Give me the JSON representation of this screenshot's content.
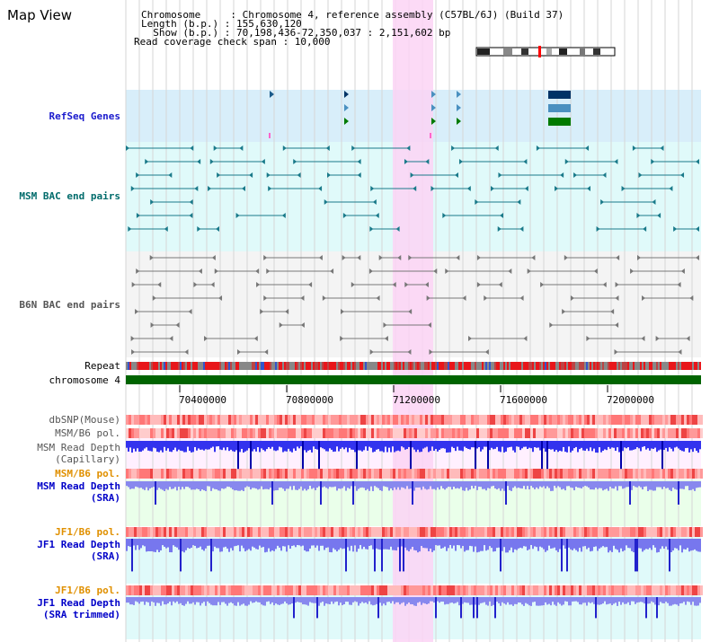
{
  "page": {
    "title": "Map View"
  },
  "header": {
    "chromosome_line": "Chromosome     : Chromosome 4, reference assembly (C57BL/6J) (Build 37)",
    "length_line": "Length (b.p.) : 155,630,120",
    "show_line": "  Show (b.p.) : 70,198,436-72,350,037 : 2,151,602 bp",
    "coverage_line": "Read coverage check span : 10,000"
  },
  "tracks": {
    "refseq_genes": "RefSeq Genes",
    "msm_bac": "MSM BAC end pairs",
    "b6n_bac": "B6N BAC end pairs",
    "repeat": "Repeat",
    "chromosome": "chromosome 4",
    "dbsnp": "dbSNP(Mouse)",
    "msm_b6_pol": "MSM/B6 pol.",
    "msm_read_depth_cap_1": "MSM Read Depth",
    "msm_read_depth_cap_2": "(Capillary)",
    "msm_b6_pol_2": "MSM/B6 pol.",
    "msm_read_depth_sra_1": "MSM Read Depth",
    "msm_read_depth_sra_2": "(SRA)",
    "jf1_b6_pol": "JF1/B6 pol.",
    "jf1_read_depth_sra_1": "JF1 Read Depth",
    "jf1_read_depth_sra_2": "(SRA)",
    "jf1_b6_pol_2": "JF1/B6 pol.",
    "jf1_read_depth_trim_1": "JF1 Read Depth",
    "jf1_read_depth_trim_2": "(SRA trimmed)"
  },
  "axis": {
    "ticks": [
      "70400000",
      "70800000",
      "71200000",
      "71600000",
      "72000000"
    ]
  },
  "colors": {
    "refseq_bg": "#d8eefa",
    "msm_bg": "#e0fafa",
    "b6n_bg": "#f4f4f4",
    "highlight": "#fbd4f4",
    "chromosome_bar": "#006400",
    "gene_dark": "#003366",
    "gene_mid": "#4a90c0",
    "gene_green": "#007a00",
    "msm_label": "#006b6b",
    "blue_label": "#0000c8",
    "orange_label": "#e09000",
    "gray_label": "#555555"
  }
}
